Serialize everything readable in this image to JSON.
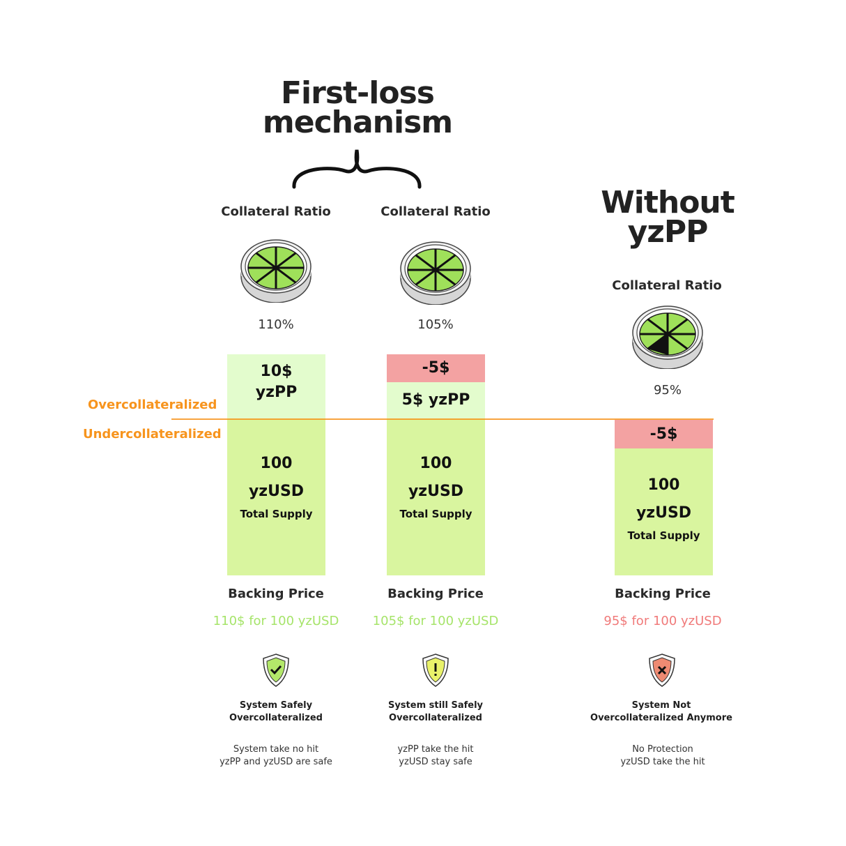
{
  "header": {
    "first_loss_title_line1": "First-loss",
    "first_loss_title_line2": "mechanism",
    "without_title_line1": "Without",
    "without_title_line2": "yzPP"
  },
  "zones": {
    "over": "Overcollateralized",
    "under": "Undercollateralized",
    "line_color": "#f7941d"
  },
  "colors": {
    "light_green": "#e3fccd",
    "green": "#d9f59f",
    "red": "#f3a2a2",
    "price_safe": "#a6e46a",
    "price_unsafe": "#f07a7a"
  },
  "columns": [
    {
      "ratio_label": "Collateral Ratio",
      "ratio": "110%",
      "top_label_1": "10$",
      "top_label_2": "yzPP",
      "amount": "100",
      "token": "yzUSD",
      "supply": "Total Supply",
      "backing_label": "Backing Price",
      "price": "110$ for 100 yzUSD",
      "shield_icon": "shield-check-icon",
      "status_1": "System Safely",
      "status_2": "Overcollateralized",
      "desc_1": "System take no hit",
      "desc_2": "yzPP and yzUSD are safe"
    },
    {
      "ratio_label": "Collateral Ratio",
      "ratio": "105%",
      "loss": "-5$",
      "top_label_1": "5$ yzPP",
      "amount": "100",
      "token": "yzUSD",
      "supply": "Total Supply",
      "backing_label": "Backing Price",
      "price": "105$ for 100 yzUSD",
      "shield_icon": "shield-warning-icon",
      "status_1": "System still Safely",
      "status_2": "Overcollateralized",
      "desc_1": "yzPP take the hit",
      "desc_2": "yzUSD stay safe"
    },
    {
      "ratio_label": "Collateral Ratio",
      "ratio": "95%",
      "loss": "-5$",
      "amount": "100",
      "token": "yzUSD",
      "supply": "Total Supply",
      "backing_label": "Backing Price",
      "price": "95$ for 100 yzUSD",
      "shield_icon": "shield-x-icon",
      "status_1": "System Not",
      "status_2": "Overcollateralized Anymore",
      "desc_1": "No Protection",
      "desc_2": "yzUSD take the hit"
    }
  ]
}
